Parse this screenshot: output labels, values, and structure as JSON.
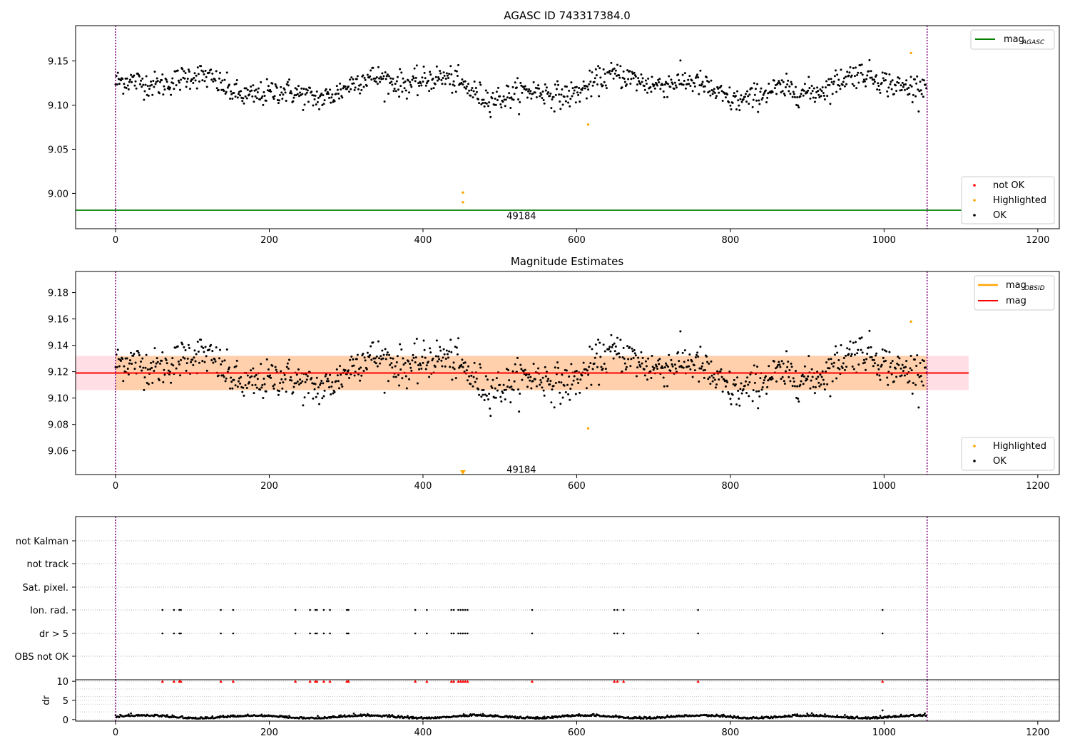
{
  "chart_data": [
    {
      "type": "scatter",
      "title": "AGASC ID 743317384.0",
      "xlim": [
        -52,
        1228
      ],
      "ylim": [
        8.96,
        9.19
      ],
      "xticks": [
        "0",
        "200",
        "400",
        "600",
        "800",
        "1000",
        "1200"
      ],
      "yticks": [
        "9.00",
        "9.05",
        "9.10",
        "9.15"
      ],
      "vlines": [
        0,
        1056
      ],
      "annotation": {
        "text": "49184",
        "x": 528,
        "y": 8.975
      },
      "mag_agasc": 8.981,
      "series_ok": {
        "name": "OK",
        "mean": 9.12,
        "spread": 0.012,
        "n": 1056
      },
      "highlighted": [
        {
          "x": 452,
          "y": 9.001
        },
        {
          "x": 452,
          "y": 8.99
        },
        {
          "x": 615,
          "y": 9.078
        },
        {
          "x": 1035,
          "y": 9.159
        }
      ],
      "legend_upper": [
        {
          "name": "mag",
          "sub": "AGASC",
          "color": "#008000"
        }
      ],
      "legend_lower": [
        {
          "name": "not OK",
          "color": "#ff0000"
        },
        {
          "name": "Highlighted",
          "color": "#ffa500"
        },
        {
          "name": "OK",
          "color": "#000000"
        }
      ]
    },
    {
      "type": "scatter",
      "title": "Magnitude Estimates",
      "xlim": [
        -52,
        1228
      ],
      "ylim": [
        9.042,
        9.196
      ],
      "xticks": [
        "0",
        "200",
        "400",
        "600",
        "800",
        "1000",
        "1200"
      ],
      "yticks": [
        "9.06",
        "9.08",
        "9.10",
        "9.12",
        "9.14",
        "9.16",
        "9.18"
      ],
      "vlines": [
        0,
        1056
      ],
      "annotation": {
        "text": "49184",
        "x": 528,
        "y": 9.046
      },
      "mag": 9.119,
      "mag_band": [
        9.106,
        9.132
      ],
      "obsid_band": [
        9.106,
        9.132
      ],
      "highlighted": [
        {
          "x": 615,
          "y": 9.077
        },
        {
          "x": 1035,
          "y": 9.158
        }
      ],
      "legend_upper": [
        {
          "name": "mag",
          "sub": "OBSID",
          "color": "#ffa500"
        },
        {
          "name": "mag",
          "sub": "",
          "color": "#ff0000"
        }
      ],
      "legend_lower": [
        {
          "name": "Highlighted",
          "color": "#ffa500"
        },
        {
          "name": "OK",
          "color": "#000000"
        }
      ]
    },
    {
      "type": "scatter",
      "xlim": [
        -52,
        1228
      ],
      "row_labels": [
        "not Kalman",
        "not track",
        "Sat. pixel.",
        "Ion. rad.",
        "dr > 5",
        "OBS not OK"
      ],
      "flag_x": [
        61,
        76,
        83,
        85,
        137,
        153,
        234,
        253,
        260,
        262,
        271,
        279,
        301,
        303,
        390,
        405,
        437,
        440,
        446,
        449,
        452,
        455,
        458,
        542,
        649,
        653,
        661,
        758,
        998
      ],
      "dr_ylabel": "dr",
      "dr_yticks": [
        "0",
        "5",
        "10"
      ],
      "dr_ylim": [
        -0.4,
        10.4
      ],
      "dr_outlier": {
        "x": 998,
        "y": 2.4
      },
      "xticks": [
        "0",
        "200",
        "400",
        "600",
        "800",
        "1000",
        "1200"
      ],
      "vlines": [
        0,
        1056
      ]
    }
  ]
}
